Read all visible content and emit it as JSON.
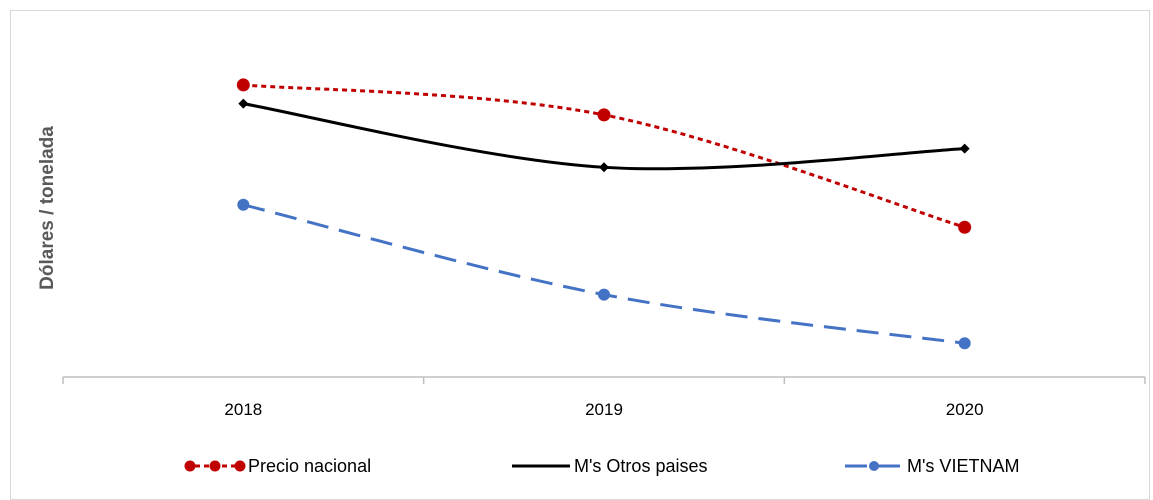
{
  "chart_data": {
    "type": "line",
    "categories": [
      "2018",
      "2019",
      "2020"
    ],
    "ylabel": "Dólares / tonelada",
    "xlabel": "",
    "title": "",
    "y_tick_labels_shown": false,
    "grid": false,
    "legend_position": "bottom",
    "series": [
      {
        "name": "Precio nacional",
        "values": [
          98,
          90,
          60
        ],
        "color": "#c00000",
        "line_style": "dotted",
        "marker": "circle"
      },
      {
        "name": "M's Otros paises",
        "values": [
          93,
          76,
          81
        ],
        "color": "#000000",
        "line_style": "solid",
        "marker": "diamond"
      },
      {
        "name": "M's VIETNAM",
        "values": [
          66,
          42,
          29
        ],
        "color": "#4472c4",
        "line_style": "dashed",
        "marker": "circle"
      }
    ],
    "ylim": [
      20,
      110
    ]
  }
}
